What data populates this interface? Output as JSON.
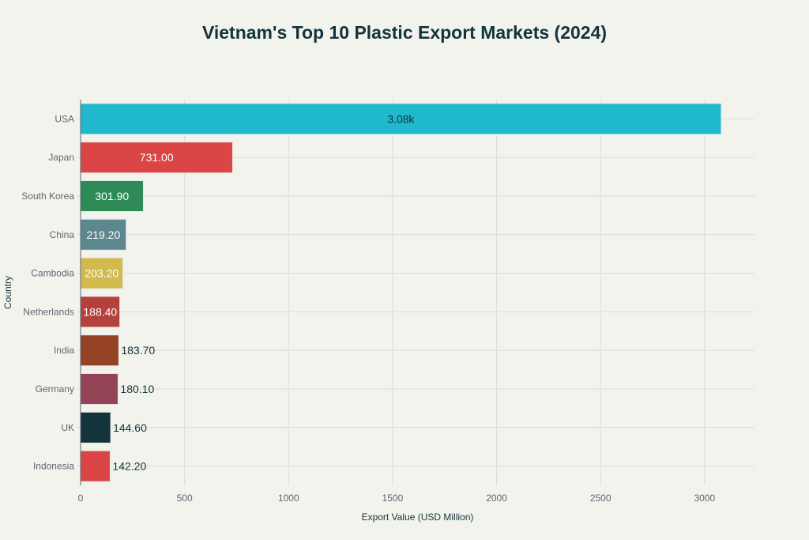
{
  "chart_data": {
    "type": "bar",
    "orientation": "horizontal",
    "title": "Vietnam's Top 10 Plastic Export Markets (2024)",
    "xlabel": "Export Value (USD Million)",
    "ylabel": "Country",
    "xlim": [
      0,
      3240
    ],
    "xticks": [
      0,
      500,
      1000,
      1500,
      2000,
      2500,
      3000
    ],
    "grid": true,
    "categories": [
      "USA",
      "Japan",
      "South Korea",
      "China",
      "Cambodia",
      "Netherlands",
      "India",
      "Germany",
      "UK",
      "Indonesia"
    ],
    "values": [
      3080,
      731.0,
      301.9,
      219.2,
      203.2,
      188.4,
      183.7,
      180.1,
      144.6,
      142.2
    ],
    "data_labels": [
      "3.08k",
      "731.00",
      "301.90",
      "219.20",
      "203.20",
      "188.40",
      "183.70",
      "180.10",
      "144.60",
      "142.20"
    ],
    "colors": [
      "#1FB8CD",
      "#DB4545",
      "#2E8B57",
      "#5D878F",
      "#D2BA4C",
      "#B4413C",
      "#964325",
      "#944454",
      "#13343B",
      "#DB4545"
    ]
  }
}
